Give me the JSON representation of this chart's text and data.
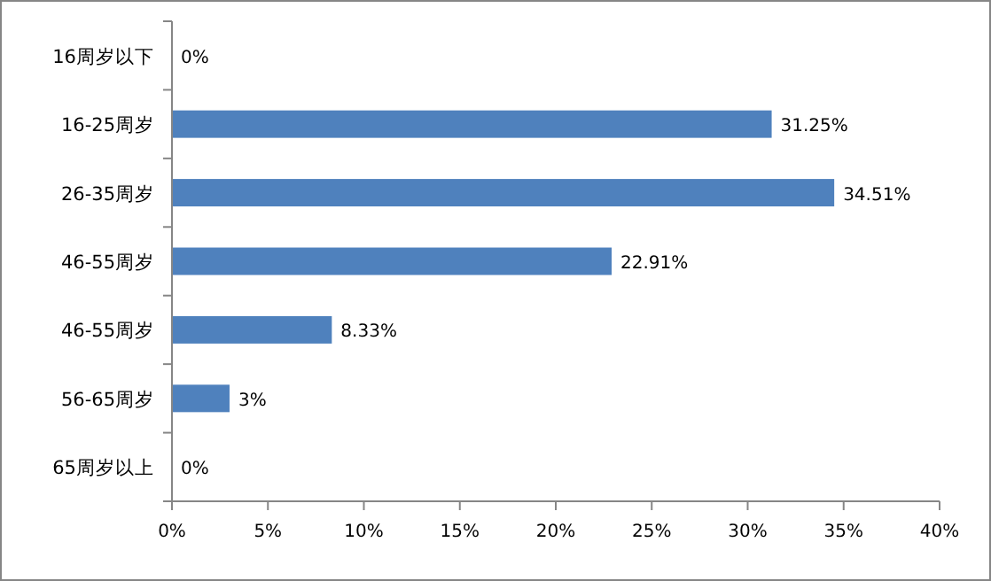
{
  "chart_data": {
    "type": "bar",
    "orientation": "horizontal",
    "categories": [
      "16周岁以下",
      "16-25周岁",
      "26-35周岁",
      "46-55周岁",
      "46-55周岁",
      "56-65周岁",
      "65周岁以上"
    ],
    "values": [
      0,
      31.25,
      34.51,
      22.91,
      8.33,
      3,
      0
    ],
    "value_labels": [
      "0%",
      "31.25%",
      "34.51%",
      "22.91%",
      "8.33%",
      "3%",
      "0%"
    ],
    "color": "#4f81bd",
    "xlim": [
      0,
      40
    ],
    "xticks": [
      {
        "value": 0,
        "label": "0%"
      },
      {
        "value": 5,
        "label": "5%"
      },
      {
        "value": 10,
        "label": "10%"
      },
      {
        "value": 15,
        "label": "15%"
      },
      {
        "value": 20,
        "label": "20%"
      },
      {
        "value": 25,
        "label": "25%"
      },
      {
        "value": 30,
        "label": "30%"
      },
      {
        "value": 35,
        "label": "35%"
      },
      {
        "value": 40,
        "label": "40%"
      }
    ]
  }
}
